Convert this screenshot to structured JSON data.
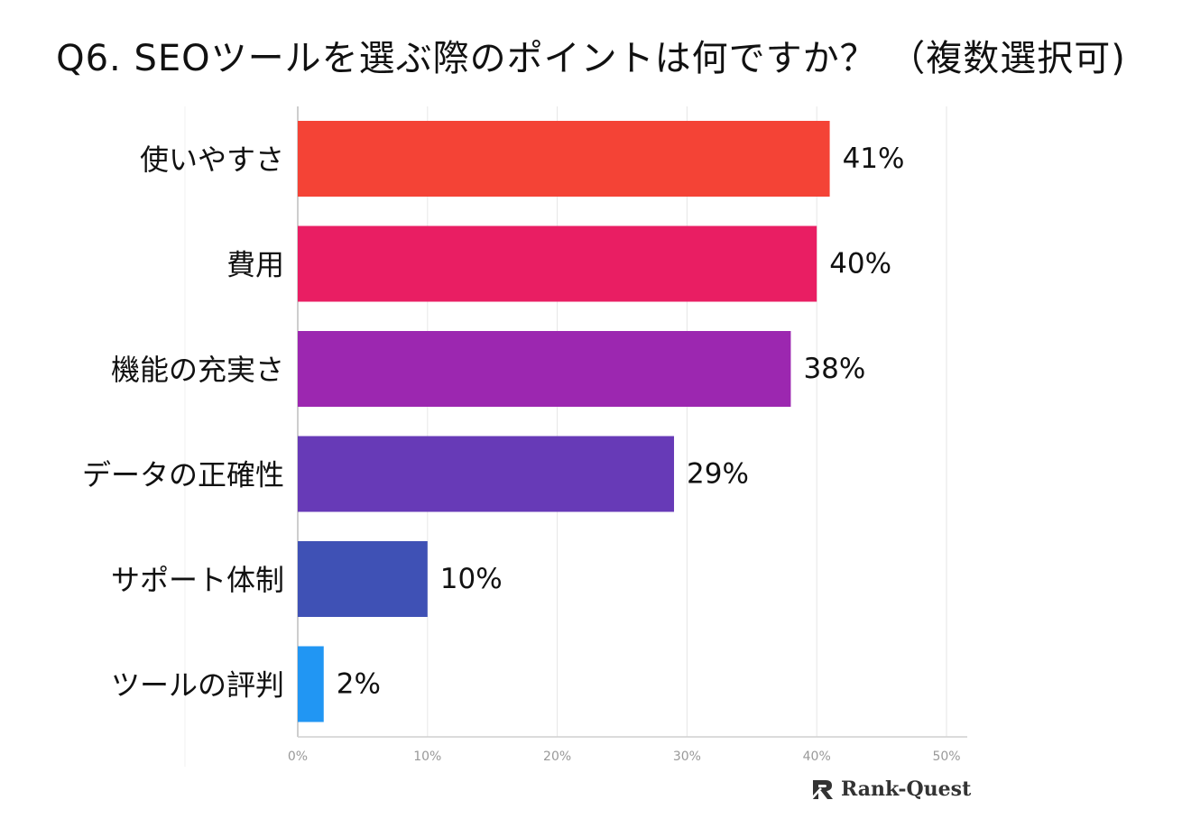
{
  "chart_data": {
    "type": "bar",
    "orientation": "horizontal",
    "title": "Q6. SEOツールを選ぶ際のポイントは何ですか？ （複数選択可)",
    "categories": [
      "使いやすさ",
      "費用",
      "機能の充実さ",
      "データの正確性",
      "サポート体制",
      "ツールの評判"
    ],
    "values": [
      41,
      40,
      38,
      29,
      10,
      2
    ],
    "value_labels": [
      "41%",
      "40%",
      "38%",
      "29%",
      "10%",
      "2%"
    ],
    "colors": [
      "#f44336",
      "#e91e63",
      "#9c27b0",
      "#673ab7",
      "#3f51b5",
      "#2196f3"
    ],
    "xlim": [
      0,
      50
    ],
    "xticks": [
      "0%",
      "10%",
      "20%",
      "30%",
      "40%",
      "50%"
    ],
    "grid": true
  },
  "brand": {
    "name": "Rank-Quest"
  }
}
